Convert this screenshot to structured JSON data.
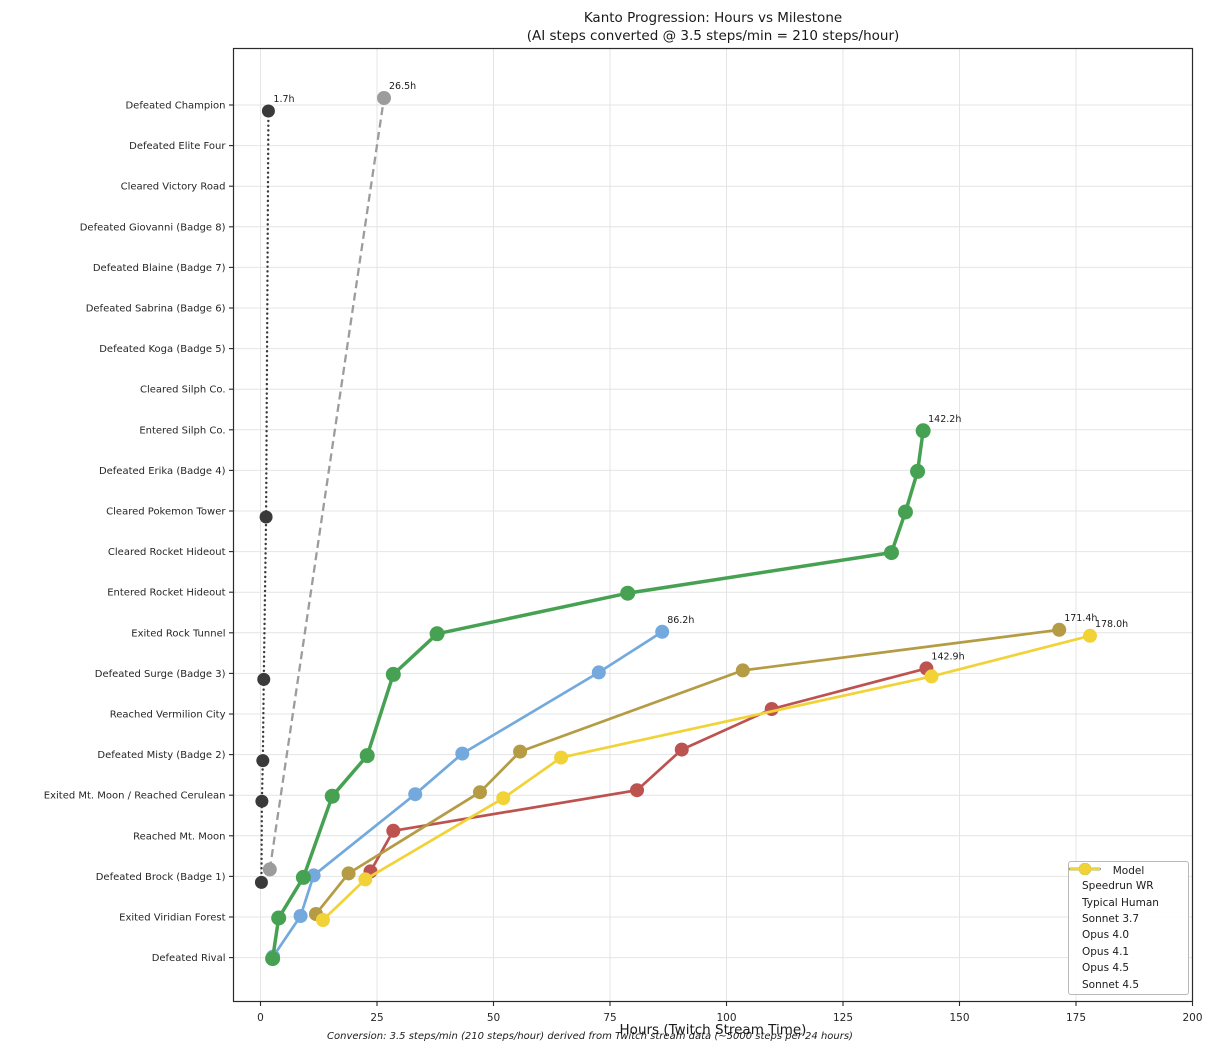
{
  "chart_data": {
    "type": "line",
    "title": "Kanto Progression: Hours vs Milestone",
    "subtitle": "(AI steps converted @ 3.5 steps/min = 210 steps/hour)",
    "xlabel": "Hours (Twitch Stream Time)",
    "footnote": "Conversion: 3.5 steps/min (210 steps/hour) derived from Twitch stream data (~5000 steps per 24 hours)",
    "legend_title": "Model",
    "legend_position": "lower right",
    "grid": true,
    "xticks": [
      0,
      25,
      50,
      75,
      100,
      125,
      150,
      175,
      200
    ],
    "xlim": [
      -5.8,
      200.8
    ],
    "milestones_top_to_bottom": [
      "Defeated Champion",
      "Defeated Elite Four",
      "Cleared Victory Road",
      "Defeated Giovanni (Badge 8)",
      "Defeated Blaine (Badge 7)",
      "Defeated Sabrina (Badge 6)",
      "Defeated Koga (Badge 5)",
      "Cleared Silph Co.",
      "Entered Silph Co.",
      "Defeated Erika (Badge 4)",
      "Cleared Pokemon Tower",
      "Cleared Rocket Hideout",
      "Entered Rocket Hideout",
      "Exited Rock Tunnel",
      "Defeated Surge (Badge 3)",
      "Reached Vermilion City",
      "Defeated Misty (Badge 2)",
      "Exited Mt. Moon / Reached Cerulean",
      "Reached Mt. Moon",
      "Defeated Brock (Badge 1)",
      "Exited Viridian Forest",
      "Defeated Rival"
    ],
    "series": [
      {
        "name": "Speedrun WR",
        "color": "#3a3a3a",
        "line_style": "dotted",
        "line_width": 2.4,
        "marker_radius": 6.5,
        "y_jitter": 6,
        "final_label": "1.7h",
        "points": [
          [
            "Defeated Brock (Badge 1)",
            0.2
          ],
          [
            "Exited Mt. Moon / Reached Cerulean",
            0.3
          ],
          [
            "Defeated Misty (Badge 2)",
            0.5
          ],
          [
            "Defeated Surge (Badge 3)",
            0.7
          ],
          [
            "Cleared Pokemon Tower",
            1.2
          ],
          [
            "Defeated Champion",
            1.7
          ]
        ]
      },
      {
        "name": "Typical Human",
        "color": "#9c9c9c",
        "line_style": "dashed",
        "line_width": 2.3,
        "marker_radius": 7,
        "y_jitter": -7,
        "final_label": "26.5h",
        "points": [
          [
            "Defeated Brock (Badge 1)",
            2.0
          ],
          [
            "Defeated Champion",
            26.5
          ]
        ]
      },
      {
        "name": "Sonnet 3.7",
        "color": "#bd5350",
        "line_style": "solid",
        "line_width": 2.7,
        "marker_radius": 7,
        "y_jitter": -5,
        "final_label": "142.9h",
        "points": [
          [
            "Defeated Brock (Badge 1)",
            23.6
          ],
          [
            "Reached Mt. Moon",
            28.5
          ],
          [
            "Exited Mt. Moon / Reached Cerulean",
            80.8
          ],
          [
            "Defeated Misty (Badge 2)",
            90.4
          ],
          [
            "Reached Vermilion City",
            109.7
          ],
          [
            "Defeated Surge (Badge 3)",
            142.9
          ]
        ]
      },
      {
        "name": "Opus 4.0",
        "color": "#b49b44",
        "line_style": "solid",
        "line_width": 2.7,
        "marker_radius": 7,
        "y_jitter": -3,
        "final_label": "171.4h",
        "points": [
          [
            "Exited Viridian Forest",
            11.9
          ],
          [
            "Defeated Brock (Badge 1)",
            18.9
          ],
          [
            "Exited Mt. Moon / Reached Cerulean",
            47.1
          ],
          [
            "Defeated Misty (Badge 2)",
            55.7
          ],
          [
            "Defeated Surge (Badge 3)",
            103.5
          ],
          [
            "Exited Rock Tunnel",
            171.4
          ]
        ]
      },
      {
        "name": "Opus 4.1",
        "color": "#73a9dd",
        "line_style": "solid",
        "line_width": 2.7,
        "marker_radius": 7,
        "y_jitter": -1,
        "final_label": "86.2h",
        "points": [
          [
            "Defeated Rival",
            2.7
          ],
          [
            "Exited Viridian Forest",
            8.6
          ],
          [
            "Defeated Brock (Badge 1)",
            11.4
          ],
          [
            "Exited Mt. Moon / Reached Cerulean",
            33.2
          ],
          [
            "Defeated Misty (Badge 2)",
            43.3
          ],
          [
            "Defeated Surge (Badge 3)",
            72.6
          ],
          [
            "Exited Rock Tunnel",
            86.2
          ]
        ]
      },
      {
        "name": "Opus 4.5",
        "color": "#47a152",
        "line_style": "solid",
        "line_width": 3.5,
        "marker_radius": 7.5,
        "y_jitter": 1,
        "final_label": "142.2h",
        "points": [
          [
            "Defeated Rival",
            2.6
          ],
          [
            "Exited Viridian Forest",
            3.9
          ],
          [
            "Defeated Brock (Badge 1)",
            9.2
          ],
          [
            "Exited Mt. Moon / Reached Cerulean",
            15.4
          ],
          [
            "Defeated Misty (Badge 2)",
            22.9
          ],
          [
            "Defeated Surge (Badge 3)",
            28.5
          ],
          [
            "Exited Rock Tunnel",
            37.9
          ],
          [
            "Entered Rocket Hideout",
            78.8
          ],
          [
            "Cleared Rocket Hideout",
            135.4
          ],
          [
            "Cleared Pokemon Tower",
            138.4
          ],
          [
            "Defeated Erika (Badge 4)",
            141.0
          ],
          [
            "Entered Silph Co.",
            142.2
          ]
        ]
      },
      {
        "name": "Sonnet 4.5",
        "color": "#f1d237",
        "line_style": "solid",
        "line_width": 2.7,
        "marker_radius": 7,
        "y_jitter": 3,
        "final_label": "178.0h",
        "points": [
          [
            "Exited Viridian Forest",
            13.4
          ],
          [
            "Defeated Brock (Badge 1)",
            22.5
          ],
          [
            "Exited Mt. Moon / Reached Cerulean",
            52.1
          ],
          [
            "Defeated Misty (Badge 2)",
            64.5
          ],
          [
            "Defeated Surge (Badge 3)",
            144.0
          ],
          [
            "Exited Rock Tunnel",
            178.0
          ]
        ]
      }
    ]
  }
}
